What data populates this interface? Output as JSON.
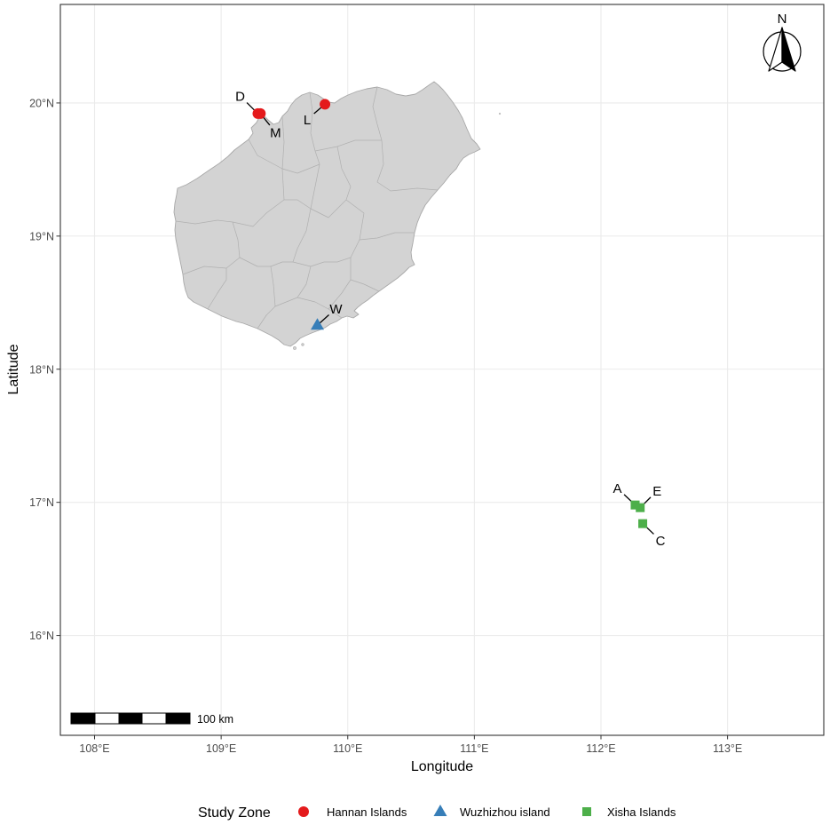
{
  "axes": {
    "x": {
      "title": "Longitude",
      "lim": [
        107.73,
        113.76
      ],
      "ticks": [
        {
          "value": 108,
          "label": "108°E"
        },
        {
          "value": 109,
          "label": "109°E"
        },
        {
          "value": 110,
          "label": "110°E"
        },
        {
          "value": 111,
          "label": "111°E"
        },
        {
          "value": 112,
          "label": "112°E"
        },
        {
          "value": 113,
          "label": "113°E"
        }
      ]
    },
    "y": {
      "title": "Latitude",
      "lim": [
        15.25,
        20.74
      ],
      "ticks": [
        {
          "value": 20,
          "label": "20°N"
        },
        {
          "value": 19,
          "label": "19°N"
        },
        {
          "value": 18,
          "label": "18°N"
        },
        {
          "value": 17,
          "label": "17°N"
        },
        {
          "value": 16,
          "label": "16°N"
        }
      ]
    },
    "grid": true
  },
  "map_data": {
    "type": "map",
    "sites": [
      {
        "label": "D",
        "zone": "Hannan Islands",
        "lon": 109.29,
        "lat": 19.92
      },
      {
        "label": "M",
        "zone": "Hannan Islands",
        "lon": 109.31,
        "lat": 19.92
      },
      {
        "label": "L",
        "zone": "Hannan Islands",
        "lon": 109.82,
        "lat": 19.99
      },
      {
        "label": "W",
        "zone": "Wuzhizhou island",
        "lon": 109.76,
        "lat": 18.33
      },
      {
        "label": "A",
        "zone": "Xisha Islands",
        "lon": 112.27,
        "lat": 16.98
      },
      {
        "label": "E",
        "zone": "Xisha Islands",
        "lon": 112.31,
        "lat": 16.96
      },
      {
        "label": "C",
        "zone": "Xisha Islands",
        "lon": 112.33,
        "lat": 16.84
      }
    ]
  },
  "north_arrow": {
    "label": "N"
  },
  "scale_bar": {
    "label": "100 km"
  },
  "legend": {
    "title": "Study Zone",
    "position": "bottom",
    "items": [
      {
        "label": "Hannan Islands",
        "shape": "circle",
        "color": "#E41A1C"
      },
      {
        "label": "Wuzhizhou island",
        "shape": "triangle",
        "color": "#377EB8"
      },
      {
        "label": "Xisha Islands",
        "shape": "square",
        "color": "#4DAF4A"
      }
    ]
  },
  "colors": {
    "land": "#d3d3d3",
    "grid": "#ebebeb",
    "panel_border": "#333333"
  }
}
